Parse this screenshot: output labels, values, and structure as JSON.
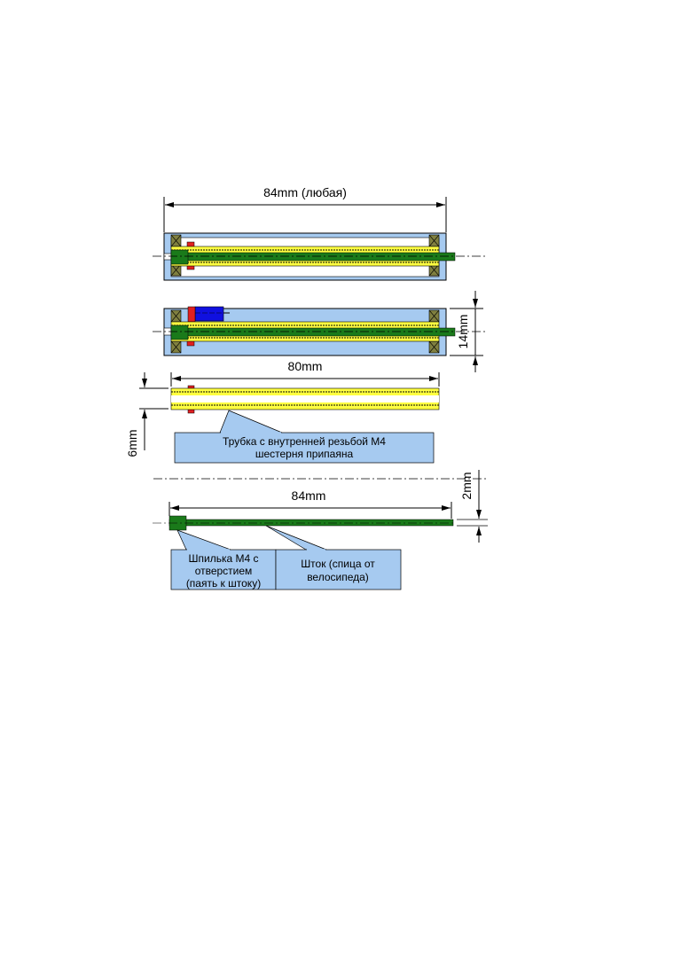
{
  "colors": {
    "housing": "#a6caf0",
    "tube": "#ffff40",
    "rod": "#1a7a1a",
    "gear": "#e02020",
    "motor": "#1010e0",
    "bearing": "#808040"
  },
  "dimensions": {
    "housing_length": "84mm (любая)",
    "housing_height": "14mm",
    "tube_length": "80mm",
    "tube_diameter": "6mm",
    "rod_length": "84mm",
    "rod_diameter": "2mm"
  },
  "callouts": {
    "tube_line1": "Трубка с внутренней резьбой М4",
    "tube_line2": "шестерня припаяна",
    "stud_line1": "Шпилька М4 с",
    "stud_line2": "отверстием",
    "stud_line3": "(паять к штоку)",
    "rod_line1": "Шток (спица от",
    "rod_line2": "велосипеда)"
  }
}
